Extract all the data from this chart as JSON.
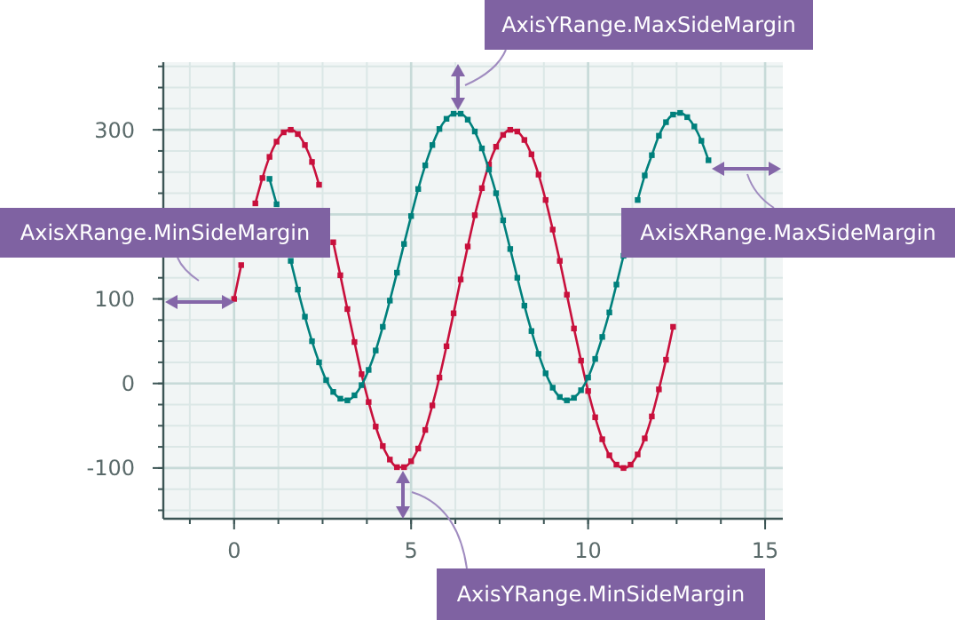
{
  "chart_data": {
    "type": "line",
    "marker": "square",
    "grid": true,
    "xlim": [
      -2,
      15.5
    ],
    "xticks": [
      0,
      5,
      10,
      15
    ],
    "ylim": [
      -160,
      380
    ],
    "yticks": [
      -100,
      0,
      100,
      {
        "value": 200,
        "label": null
      },
      300
    ],
    "annotations": [
      "AxisYRange.MaxSideMargin",
      "AxisXRange.MinSideMargin",
      "AxisXRange.MaxSideMargin",
      "AxisYRange.MinSideMargin"
    ],
    "series": [
      {
        "color": "#c8103c",
        "x": [
          0,
          0.2,
          0.4,
          0.6,
          0.8,
          1,
          1.2,
          1.4,
          1.6,
          1.8,
          2,
          2.2,
          2.4,
          2.6,
          2.8,
          3,
          3.2,
          3.4,
          3.6,
          3.8,
          4,
          4.2,
          4.4,
          4.6,
          4.8,
          5,
          5.2,
          5.4,
          5.6,
          5.8,
          6,
          6.2,
          6.4,
          6.6,
          6.8,
          7,
          7.2,
          7.4,
          7.6,
          7.8,
          8,
          8.2,
          8.4,
          8.6,
          8.8,
          9,
          9.2,
          9.4,
          9.6,
          9.8,
          10,
          10.2,
          10.4,
          10.6,
          10.8,
          11,
          11.2,
          11.4,
          11.6,
          11.8,
          12,
          12.2,
          12.4
        ],
        "values": [
          100,
          140,
          null,
          213,
          243,
          268,
          286,
          297,
          300,
          295,
          282,
          262,
          235,
          null,
          167,
          128,
          88,
          49,
          11,
          -22,
          -51,
          -74,
          -90,
          -99,
          -99,
          -92,
          -77,
          -55,
          -26,
          7,
          44,
          83,
          123,
          162,
          199,
          231,
          259,
          280,
          294,
          300,
          298,
          288,
          271,
          247,
          217,
          182,
          145,
          105,
          65,
          27,
          -9,
          -40,
          -66,
          -85,
          -96,
          -100,
          -96,
          -84,
          -65,
          -39,
          -7,
          28,
          67
        ]
      },
      {
        "color": "#00807c",
        "x": [
          1,
          1.2,
          1.4,
          1.6,
          1.8,
          2,
          2.2,
          2.4,
          2.6,
          2.8,
          3,
          3.2,
          3.4,
          3.6,
          3.8,
          4,
          4.2,
          4.4,
          4.6,
          4.8,
          5,
          5.2,
          5.4,
          5.6,
          5.8,
          6,
          6.2,
          6.4,
          6.6,
          6.8,
          7,
          7.2,
          7.4,
          7.6,
          7.8,
          8,
          8.2,
          8.4,
          8.6,
          8.8,
          9,
          9.2,
          9.4,
          9.6,
          9.8,
          10,
          10.2,
          10.4,
          10.6,
          10.8,
          11,
          11.2,
          11.4,
          11.6,
          11.8,
          12,
          12.2,
          12.4,
          12.6,
          12.8,
          13,
          13.2,
          13.4
        ],
        "values": [
          242,
          212,
          null,
          145,
          111,
          79,
          50,
          25,
          4,
          -10,
          -18,
          -20,
          -14,
          -2,
          16,
          39,
          67,
          98,
          131,
          165,
          198,
          230,
          258,
          282,
          301,
          313,
          319,
          319,
          312,
          298,
          278,
          253,
          225,
          193,
          159,
          125,
          92,
          62,
          35,
          12,
          -5,
          -16,
          -20,
          -17,
          -8,
          7,
          29,
          55,
          84,
          117,
          151,
          null,
          217,
          246,
          270,
          293,
          309,
          318,
          320,
          315,
          304,
          287,
          264
        ]
      }
    ]
  }
}
